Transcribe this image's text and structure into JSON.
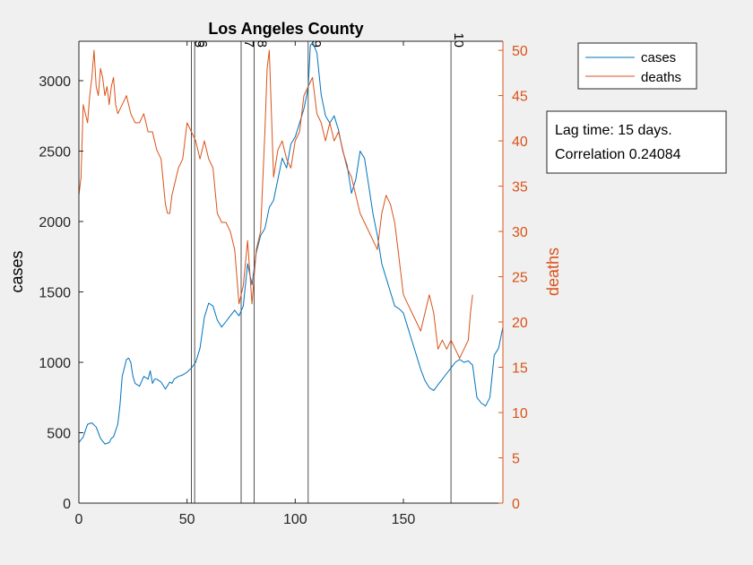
{
  "chart_data": {
    "type": "line",
    "title": "Los Angeles County",
    "xlabel": "",
    "ylabel_left": "cases",
    "ylabel_right": "deaths",
    "xlim": [
      0,
      196
    ],
    "ylim_left": [
      0,
      3280
    ],
    "ylim_right": [
      0,
      51
    ],
    "x_ticks": [
      0,
      50,
      100,
      150
    ],
    "y_ticks_left": [
      0,
      500,
      1000,
      1500,
      2000,
      2500,
      3000
    ],
    "y_ticks_right": [
      0,
      5,
      10,
      15,
      20,
      25,
      30,
      35,
      40,
      45,
      50
    ],
    "colors": {
      "cases": "#0072bd",
      "deaths": "#d95319"
    },
    "legend_position": "top-right-outside",
    "legend": [
      {
        "label": "cases",
        "color": "#0072bd"
      },
      {
        "label": "deaths",
        "color": "#d95319"
      }
    ],
    "annotation": {
      "line1": "Lag time: 15 days.",
      "line2": "Correlation 0.24084"
    },
    "vertical_markers": [
      {
        "x": 52,
        "label": "5"
      },
      {
        "x": 53.5,
        "label": "6"
      },
      {
        "x": 75,
        "label": "7"
      },
      {
        "x": 81,
        "label": "8"
      },
      {
        "x": 106,
        "label": "9"
      },
      {
        "x": 172,
        "label": "10"
      }
    ],
    "series": [
      {
        "name": "cases",
        "axis": "left",
        "x": [
          0,
          2,
          4,
          6,
          8,
          10,
          12,
          14,
          15,
          16,
          18,
          19,
          20,
          22,
          23,
          24,
          25,
          26,
          27,
          28,
          30,
          32,
          33,
          34,
          35,
          36,
          38,
          40,
          42,
          43,
          44,
          46,
          48,
          50,
          52,
          54,
          56,
          58,
          60,
          62,
          64,
          66,
          68,
          70,
          72,
          74,
          76,
          78,
          80,
          82,
          84,
          86,
          88,
          90,
          92,
          94,
          96,
          98,
          100,
          102,
          104,
          106,
          107,
          108,
          110,
          112,
          114,
          116,
          118,
          120,
          122,
          124,
          126,
          128,
          130,
          132,
          134,
          136,
          138,
          140,
          142,
          144,
          146,
          148,
          150,
          152,
          154,
          156,
          158,
          160,
          162,
          164,
          166,
          168,
          170,
          172,
          174,
          176,
          178,
          180,
          182,
          184,
          186,
          188,
          190,
          192,
          194,
          196
        ],
        "values": [
          430,
          470,
          560,
          570,
          540,
          460,
          420,
          430,
          460,
          470,
          560,
          700,
          900,
          1020,
          1030,
          1000,
          900,
          850,
          840,
          830,
          900,
          880,
          940,
          850,
          880,
          880,
          860,
          810,
          860,
          850,
          880,
          900,
          910,
          930,
          960,
          1000,
          1100,
          1320,
          1420,
          1400,
          1300,
          1250,
          1290,
          1330,
          1370,
          1330,
          1400,
          1700,
          1550,
          1780,
          1900,
          1950,
          2100,
          2150,
          2300,
          2450,
          2380,
          2550,
          2600,
          2700,
          2800,
          2950,
          3250,
          3270,
          3200,
          2900,
          2750,
          2700,
          2750,
          2650,
          2500,
          2400,
          2200,
          2300,
          2500,
          2450,
          2250,
          2050,
          1900,
          1700,
          1600,
          1500,
          1400,
          1380,
          1350,
          1250,
          1150,
          1050,
          950,
          870,
          820,
          800,
          840,
          880,
          920,
          960,
          1000,
          1020,
          1000,
          1010,
          980,
          750,
          710,
          690,
          750,
          1050,
          1100,
          1250
        ]
      },
      {
        "name": "deaths",
        "axis": "right",
        "x": [
          0,
          1,
          2,
          3,
          4,
          5,
          6,
          7,
          8,
          9,
          10,
          11,
          12,
          13,
          14,
          15,
          16,
          17,
          18,
          20,
          22,
          24,
          26,
          28,
          30,
          32,
          34,
          36,
          38,
          40,
          41,
          42,
          43,
          44,
          46,
          48,
          50,
          52,
          54,
          56,
          58,
          60,
          62,
          64,
          66,
          68,
          70,
          72,
          73,
          74,
          76,
          78,
          80,
          82,
          84,
          86,
          87,
          88,
          90,
          92,
          94,
          96,
          98,
          100,
          102,
          104,
          106,
          108,
          110,
          112,
          114,
          116,
          118,
          120,
          122,
          124,
          126,
          128,
          130,
          132,
          134,
          136,
          138,
          140,
          142,
          144,
          146,
          148,
          150,
          152,
          154,
          156,
          158,
          160,
          162,
          164,
          166,
          168,
          170,
          172,
          174,
          176,
          178,
          180,
          181,
          182
        ],
        "values": [
          34,
          36,
          44,
          43,
          42,
          45,
          47,
          50,
          46,
          45,
          48,
          47,
          45,
          46,
          44,
          46,
          47,
          44,
          43,
          44,
          45,
          43,
          42,
          42,
          43,
          41,
          41,
          39,
          38,
          33,
          32,
          32,
          34,
          35,
          37,
          38,
          42,
          41,
          40,
          38,
          40,
          38,
          37,
          32,
          31,
          31,
          30,
          28,
          25,
          22,
          24,
          29,
          22,
          28,
          30,
          41,
          48,
          50,
          36,
          39,
          40,
          38,
          37,
          40,
          41,
          45,
          46,
          47,
          43,
          42,
          40,
          42,
          40,
          41,
          39,
          37,
          36,
          34,
          32,
          31,
          30,
          29,
          28,
          32,
          34,
          33,
          31,
          27,
          23,
          22,
          21,
          20,
          19,
          21,
          23,
          21,
          17,
          18,
          17,
          18,
          17,
          16,
          17,
          18,
          21,
          23
        ]
      }
    ]
  }
}
